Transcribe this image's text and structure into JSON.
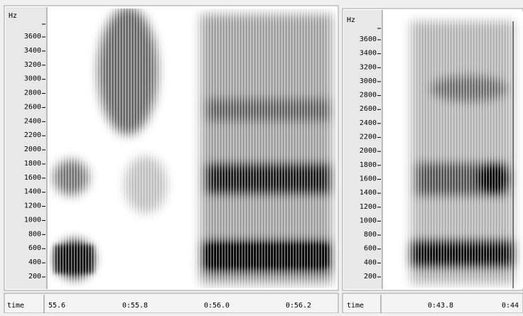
{
  "panels": [
    {
      "freq_unit": "Hz",
      "freq_ticks": [
        "3600",
        "3400",
        "3200",
        "3000",
        "2800",
        "2600",
        "2400",
        "2200",
        "2000",
        "1800",
        "1600",
        "1400",
        "1200",
        "1000",
        "800",
        "600",
        "400",
        "200"
      ],
      "time_label": "time",
      "time_ticks": [
        "55.6",
        "0:55.8",
        "0:56.0",
        "0:56.2"
      ]
    },
    {
      "freq_unit": "Hz",
      "freq_ticks": [
        "3600",
        "3400",
        "3200",
        "3000",
        "2800",
        "2600",
        "2400",
        "2200",
        "2000",
        "1800",
        "1600",
        "1400",
        "1200",
        "1000",
        "800",
        "600",
        "400",
        "200"
      ],
      "time_label": "time",
      "time_ticks": [
        "0:43.8",
        "0:44"
      ]
    }
  ]
}
